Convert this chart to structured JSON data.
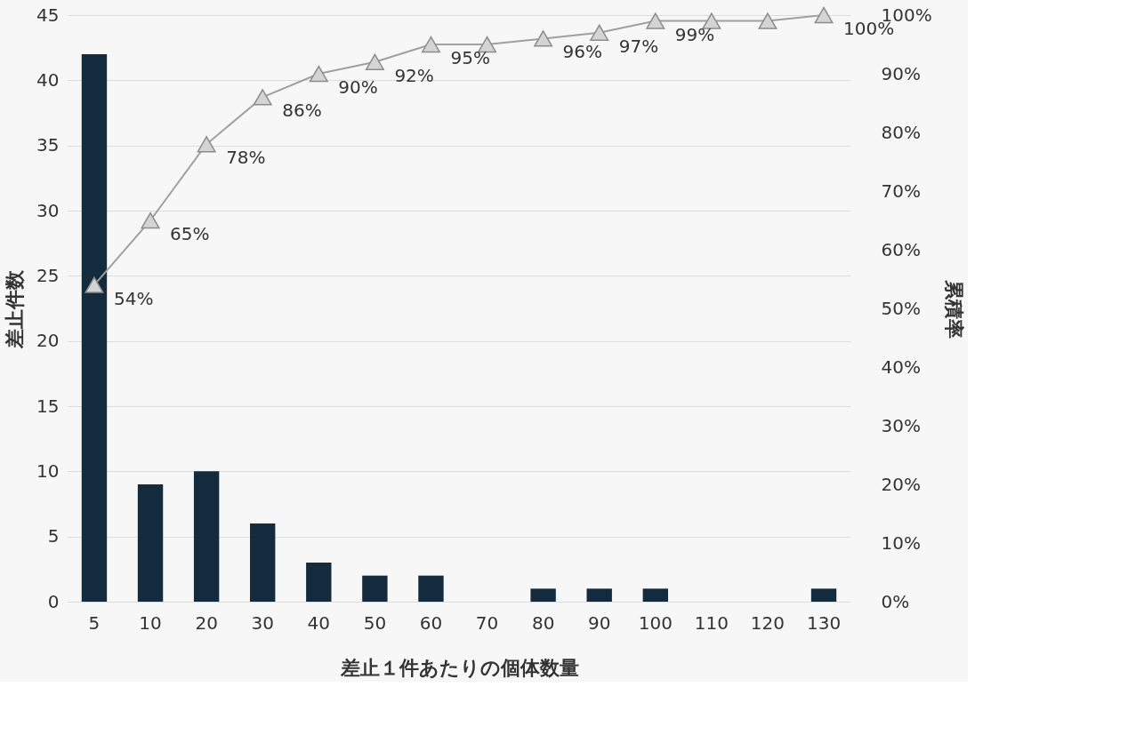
{
  "chart_data": {
    "type": "bar",
    "xlabel": "差止１件あたりの個体数量",
    "ylabel": "差止件数",
    "y2label": "累積率",
    "categories": [
      "5",
      "10",
      "20",
      "30",
      "40",
      "50",
      "60",
      "70",
      "80",
      "90",
      "100",
      "110",
      "120",
      "130"
    ],
    "ylim": [
      0,
      45
    ],
    "yticks": [
      0,
      5,
      10,
      15,
      20,
      25,
      30,
      35,
      40,
      45
    ],
    "y2lim": [
      0,
      100
    ],
    "y2ticks": [
      {
        "value": 0,
        "label": "0%"
      },
      {
        "value": 10,
        "label": "10%"
      },
      {
        "value": 20,
        "label": "20%"
      },
      {
        "value": 30,
        "label": "30%"
      },
      {
        "value": 40,
        "label": "40%"
      },
      {
        "value": 50,
        "label": "50%"
      },
      {
        "value": 60,
        "label": "60%"
      },
      {
        "value": 70,
        "label": "70%"
      },
      {
        "value": 80,
        "label": "80%"
      },
      {
        "value": 90,
        "label": "90%"
      },
      {
        "value": 100,
        "label": "100%"
      }
    ],
    "grid": "y",
    "series": [
      {
        "color": "#132b3d",
        "values": [
          42,
          9,
          10,
          6,
          3,
          2,
          2,
          0,
          1,
          1,
          1,
          0,
          0,
          1
        ]
      },
      {
        "type": "line",
        "axis": "y2",
        "color": "#a0a0a0",
        "marker": "triangle",
        "values": [
          54,
          65,
          78,
          86,
          90,
          92,
          95,
          95,
          96,
          97,
          99,
          99,
          99,
          100
        ],
        "value_labels": [
          "54%",
          "65%",
          "78%",
          "86%",
          "90%",
          "92%",
          "95%",
          null,
          "96%",
          "97%",
          "99%",
          null,
          null,
          "100%"
        ]
      }
    ]
  }
}
